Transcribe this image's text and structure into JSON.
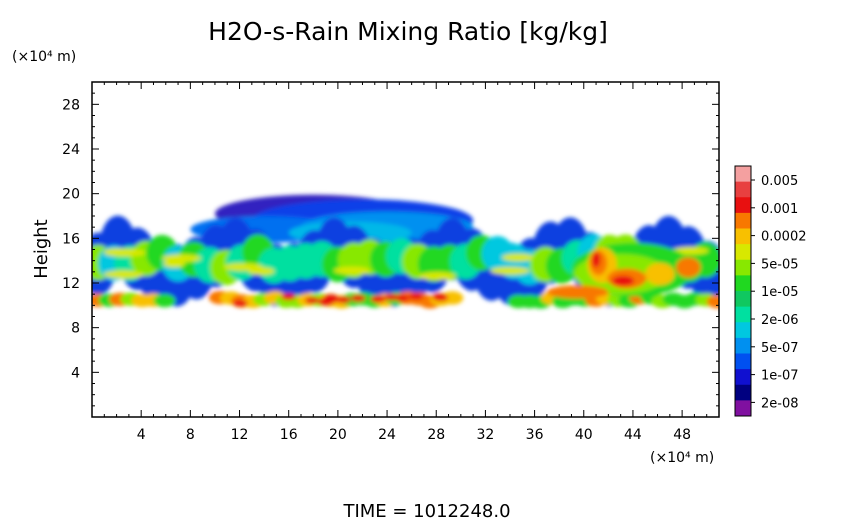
{
  "chart_data": {
    "type": "heatmap",
    "title": "H2O-s-Rain Mixing Ratio [kg/kg]",
    "xlabel": "",
    "ylabel": "Height",
    "x_unit": "(×10⁴ m)",
    "y_unit": "(×10⁴ m)",
    "xlim": [
      0,
      51
    ],
    "ylim": [
      0,
      30
    ],
    "x_ticks": [
      4,
      8,
      12,
      16,
      20,
      24,
      28,
      32,
      36,
      40,
      44,
      48
    ],
    "y_ticks": [
      4,
      8,
      12,
      16,
      20,
      24,
      28
    ],
    "grid": false,
    "colorbar": {
      "labels": [
        "0.005",
        "0.001",
        "0.0002",
        "5e-05",
        "1e-05",
        "2e-06",
        "5e-07",
        "1e-07",
        "2e-08"
      ],
      "colors_top_to_bottom": [
        "#f4a0a0",
        "#e84040",
        "#e81010",
        "#f87800",
        "#f8c000",
        "#d8e800",
        "#88e800",
        "#20d820",
        "#10c860",
        "#00e0a0",
        "#00c8e0",
        "#0090f0",
        "#0050f0",
        "#1010d0",
        "#000080",
        "#8010a0"
      ]
    },
    "regions": [
      {
        "name": "lower-layer",
        "x_range": [
          0.2,
          51
        ],
        "y_range": [
          9.5,
          11.2
        ],
        "level": "mostly 5e-05 to 0.001"
      },
      {
        "name": "main-cloud",
        "x_range": [
          0,
          51
        ],
        "y_range": [
          11,
          17
        ],
        "level": "mostly 2e-08 to 1e-05"
      },
      {
        "name": "upper-lobe",
        "x_range": [
          6,
          30
        ],
        "y_range": [
          16,
          19.5
        ],
        "level": "mostly 2e-08 to 2e-06"
      },
      {
        "name": "intense-core",
        "x_range": [
          39,
          49
        ],
        "y_range": [
          11,
          15
        ],
        "level": "peak near 0.001"
      }
    ],
    "footer": "TIME =  1012248.0"
  }
}
